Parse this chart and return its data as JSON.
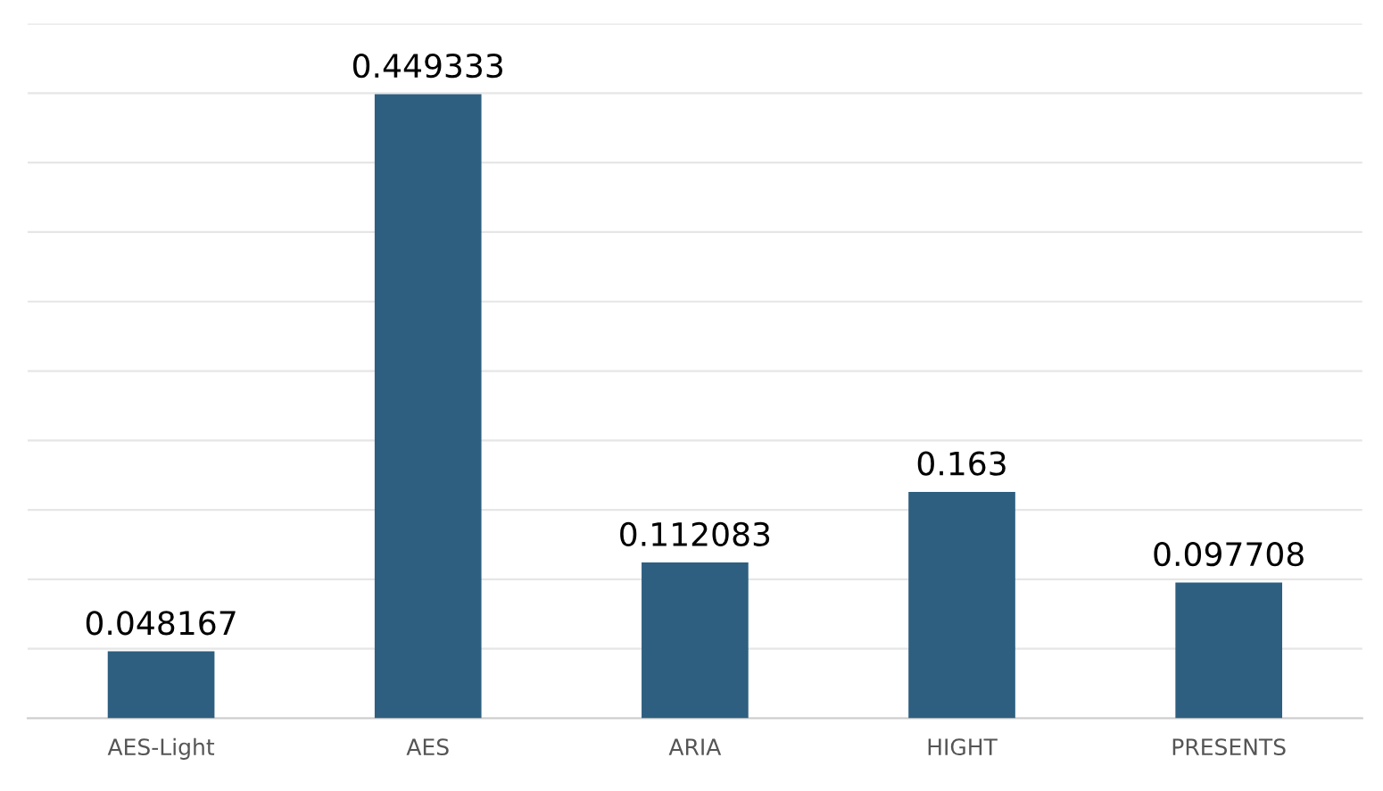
{
  "chart_data": {
    "type": "bar",
    "categories": [
      "AES-Light",
      "AES",
      "ARIA",
      "HIGHT",
      "PRESENTS"
    ],
    "values": [
      0.048167,
      0.449333,
      0.112083,
      0.163,
      0.097708
    ],
    "color": "#2e5f80",
    "data_labels": true,
    "ylim": [
      0,
      0.5
    ],
    "yticks": [
      {
        "value": 0,
        "label": null
      },
      {
        "value": 0.05,
        "label": null
      },
      {
        "value": 0.1,
        "label": null
      },
      {
        "value": 0.15,
        "label": null
      },
      {
        "value": 0.2,
        "label": null
      },
      {
        "value": 0.25,
        "label": null
      },
      {
        "value": 0.3,
        "label": null
      },
      {
        "value": 0.35,
        "label": null
      },
      {
        "value": 0.4,
        "label": null
      },
      {
        "value": 0.45,
        "label": null
      },
      {
        "value": 0.5,
        "label": null
      }
    ],
    "grid": "y",
    "tick_labels": "x"
  }
}
